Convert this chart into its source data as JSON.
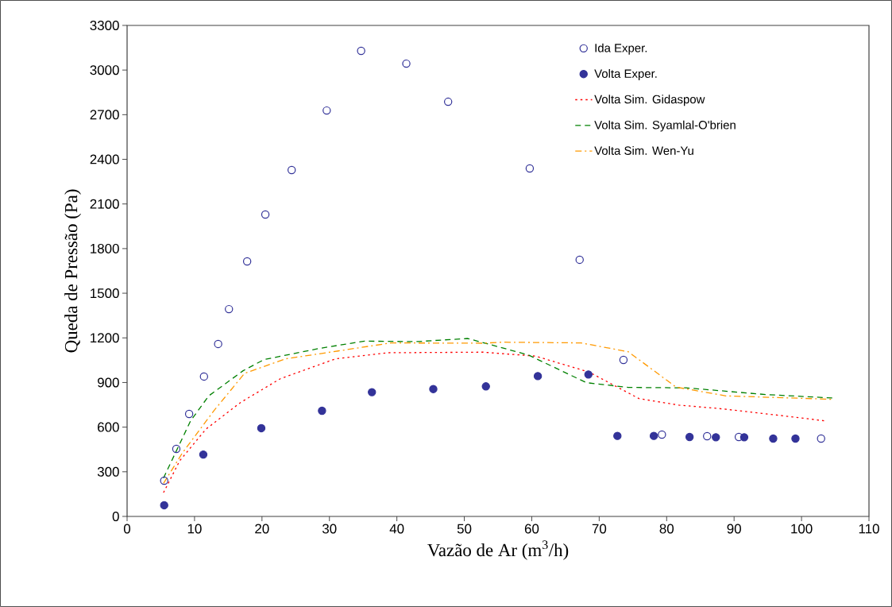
{
  "chart_data": {
    "type": "line",
    "xlabel": "Vazão de Ar (m$^{3}$/h)",
    "ylabel": "Queda de Pressão (Pa)",
    "xlim": [
      0,
      110
    ],
    "xticks": [
      0,
      10,
      20,
      30,
      40,
      50,
      60,
      70,
      80,
      90,
      100,
      110
    ],
    "ylim": [
      0,
      3300
    ],
    "yticks": [
      0,
      300,
      600,
      900,
      1200,
      1500,
      1800,
      2100,
      2400,
      2700,
      3000,
      3300
    ],
    "grid": false,
    "legend": "top right",
    "series": [
      {
        "name": "Ida Exper.",
        "type": "scatter",
        "marker": "open circle",
        "color": "#333399",
        "x": [
          5.5,
          7.3,
          9.2,
          11.4,
          13.5,
          15.1,
          17.8,
          20.5,
          24.4,
          29.6,
          34.7,
          41.4,
          47.6,
          59.7,
          67.1,
          73.6,
          79.3,
          83.1,
          86.0,
          90.7,
          102.9
        ],
        "values": [
          240,
          454,
          689,
          940,
          1159,
          1393,
          1714,
          2029,
          2328,
          2728,
          3129,
          3043,
          2787,
          2339,
          1725,
          1052,
          550,
          null,
          539,
          534,
          523
        ]
      },
      {
        "name": "Volta Exper.",
        "type": "scatter",
        "marker": "circle",
        "color": "#333399",
        "x": [
          5.5,
          11.3,
          19.9,
          28.9,
          36.3,
          45.4,
          53.2,
          60.9,
          68.4,
          72.7,
          78.1,
          83.4,
          87.3,
          91.5,
          95.8,
          99.1
        ],
        "values": [
          75,
          416,
          593,
          710,
          835,
          856,
          874,
          943,
          954,
          541,
          541,
          534,
          532,
          532,
          523,
          523
        ]
      },
      {
        "name": "Volta Sim. Gidaspow",
        "line_style": "dotted",
        "color": "#ff0000",
        "x": [
          5.4,
          7.8,
          11.7,
          16.8,
          22.7,
          30.9,
          38.7,
          52.8,
          60.6,
          68.5,
          75.9,
          81.8,
          87.6,
          96.6,
          103.7
        ],
        "values": [
          160,
          374,
          587,
          765,
          925,
          1059,
          1100,
          1104,
          1077,
          970,
          792,
          748,
          726,
          680,
          641
        ]
      },
      {
        "name": "Volta Sim. Syamlal-O'brien",
        "line_style": "dashed",
        "color": "#008000",
        "x": [
          5.4,
          9.4,
          12.1,
          17.2,
          20.3,
          28.6,
          35.2,
          43.0,
          50.5,
          59.5,
          68.1,
          74.3,
          82.9,
          94.7,
          104.6
        ],
        "values": [
          258,
          641,
          810,
          979,
          1054,
          1130,
          1178,
          1175,
          1196,
          1085,
          899,
          867,
          864,
          819,
          796
        ]
      },
      {
        "name": "Volta Sim. Wen-Yu",
        "line_style": "dashdot",
        "color": "#ff9900",
        "x": [
          5.4,
          8.2,
          12.9,
          17.4,
          23.5,
          31.3,
          39.1,
          52.8,
          55.6,
          67.3,
          74.3,
          81.4,
          88.8,
          104.6
        ],
        "values": [
          222,
          427,
          712,
          961,
          1059,
          1112,
          1166,
          1164,
          1171,
          1166,
          1107,
          869,
          810,
          787
        ]
      }
    ]
  }
}
